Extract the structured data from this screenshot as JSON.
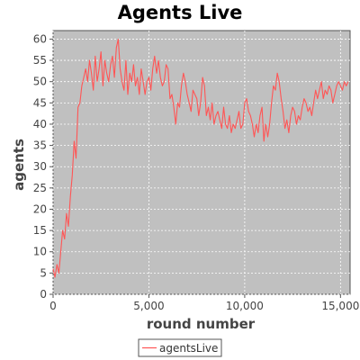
{
  "chart_data": {
    "type": "line",
    "title": "Agents Live",
    "xlabel": "round number",
    "ylabel": "agents",
    "xlim": [
      0,
      15500
    ],
    "ylim": [
      0,
      62
    ],
    "x_ticks": [
      0,
      5000,
      10000,
      15000
    ],
    "x_tick_labels": [
      "0",
      "5,000",
      "10,000",
      "15,000"
    ],
    "y_ticks": [
      0,
      5,
      10,
      15,
      20,
      25,
      30,
      35,
      40,
      45,
      50,
      55,
      60
    ],
    "y_tick_labels": [
      "0",
      "5",
      "10",
      "15",
      "20",
      "25",
      "30",
      "35",
      "40",
      "45",
      "50",
      "55",
      "60"
    ],
    "grid": true,
    "legend_position": "bottom",
    "colors": {
      "plot_background": "#c0c0c0",
      "series": "#ff5555",
      "grid": "#ffffff"
    },
    "series": [
      {
        "name": "agentsLive",
        "x": [
          0,
          100,
          200,
          300,
          400,
          500,
          600,
          700,
          800,
          900,
          1000,
          1100,
          1200,
          1300,
          1400,
          1500,
          1600,
          1700,
          1800,
          1900,
          2000,
          2100,
          2200,
          2300,
          2400,
          2500,
          2600,
          2700,
          2800,
          2900,
          3000,
          3100,
          3200,
          3300,
          3400,
          3500,
          3600,
          3700,
          3800,
          3900,
          4000,
          4100,
          4200,
          4300,
          4400,
          4500,
          4600,
          4700,
          4800,
          4900,
          5000,
          5100,
          5200,
          5300,
          5400,
          5500,
          5600,
          5700,
          5800,
          5900,
          6000,
          6100,
          6200,
          6300,
          6400,
          6500,
          6600,
          6700,
          6800,
          6900,
          7000,
          7100,
          7200,
          7300,
          7400,
          7500,
          7600,
          7700,
          7800,
          7900,
          8000,
          8100,
          8200,
          8300,
          8400,
          8500,
          8600,
          8700,
          8800,
          8900,
          9000,
          9100,
          9200,
          9300,
          9400,
          9500,
          9600,
          9700,
          9800,
          9900,
          10000,
          10100,
          10200,
          10300,
          10400,
          10500,
          10600,
          10700,
          10800,
          10900,
          11000,
          11100,
          11200,
          11300,
          11400,
          11500,
          11600,
          11700,
          11800,
          11900,
          12000,
          12100,
          12200,
          12300,
          12400,
          12500,
          12600,
          12700,
          12800,
          12900,
          13000,
          13100,
          13200,
          13300,
          13400,
          13500,
          13600,
          13700,
          13800,
          13900,
          14000,
          14100,
          14200,
          14300,
          14400,
          14500,
          14600,
          14700,
          14800,
          14900,
          15000,
          15100,
          15200,
          15300,
          15400
        ],
        "y": [
          6,
          4,
          7,
          5,
          10,
          15,
          13,
          19,
          16,
          23,
          28,
          36,
          32,
          44,
          45,
          49,
          51,
          53,
          50,
          55,
          52,
          48,
          56,
          50,
          53,
          57,
          49,
          55,
          52,
          50,
          54,
          56,
          51,
          58,
          60,
          53,
          50,
          48,
          55,
          47,
          52,
          50,
          54,
          49,
          51,
          47,
          53,
          50,
          47,
          50,
          51,
          48,
          53,
          56,
          52,
          55,
          51,
          49,
          50,
          54,
          53,
          46,
          47,
          44,
          40,
          45,
          44,
          49,
          52,
          50,
          47,
          45,
          43,
          48,
          47,
          46,
          42,
          45,
          51,
          49,
          42,
          44,
          41,
          45,
          40,
          42,
          43,
          41,
          39,
          44,
          40,
          39,
          42,
          38,
          40,
          39,
          41,
          43,
          39,
          40,
          45,
          46,
          43,
          42,
          40,
          37,
          40,
          38,
          42,
          44,
          36,
          40,
          37,
          40,
          45,
          49,
          48,
          52,
          50,
          46,
          43,
          39,
          41,
          38,
          42,
          44,
          43,
          40,
          42,
          41,
          44,
          46,
          45,
          43,
          44,
          42,
          45,
          48,
          46,
          48,
          50,
          46,
          48,
          47,
          49,
          48,
          45,
          47,
          49,
          50,
          49,
          48,
          50,
          49,
          50
        ]
      }
    ]
  }
}
